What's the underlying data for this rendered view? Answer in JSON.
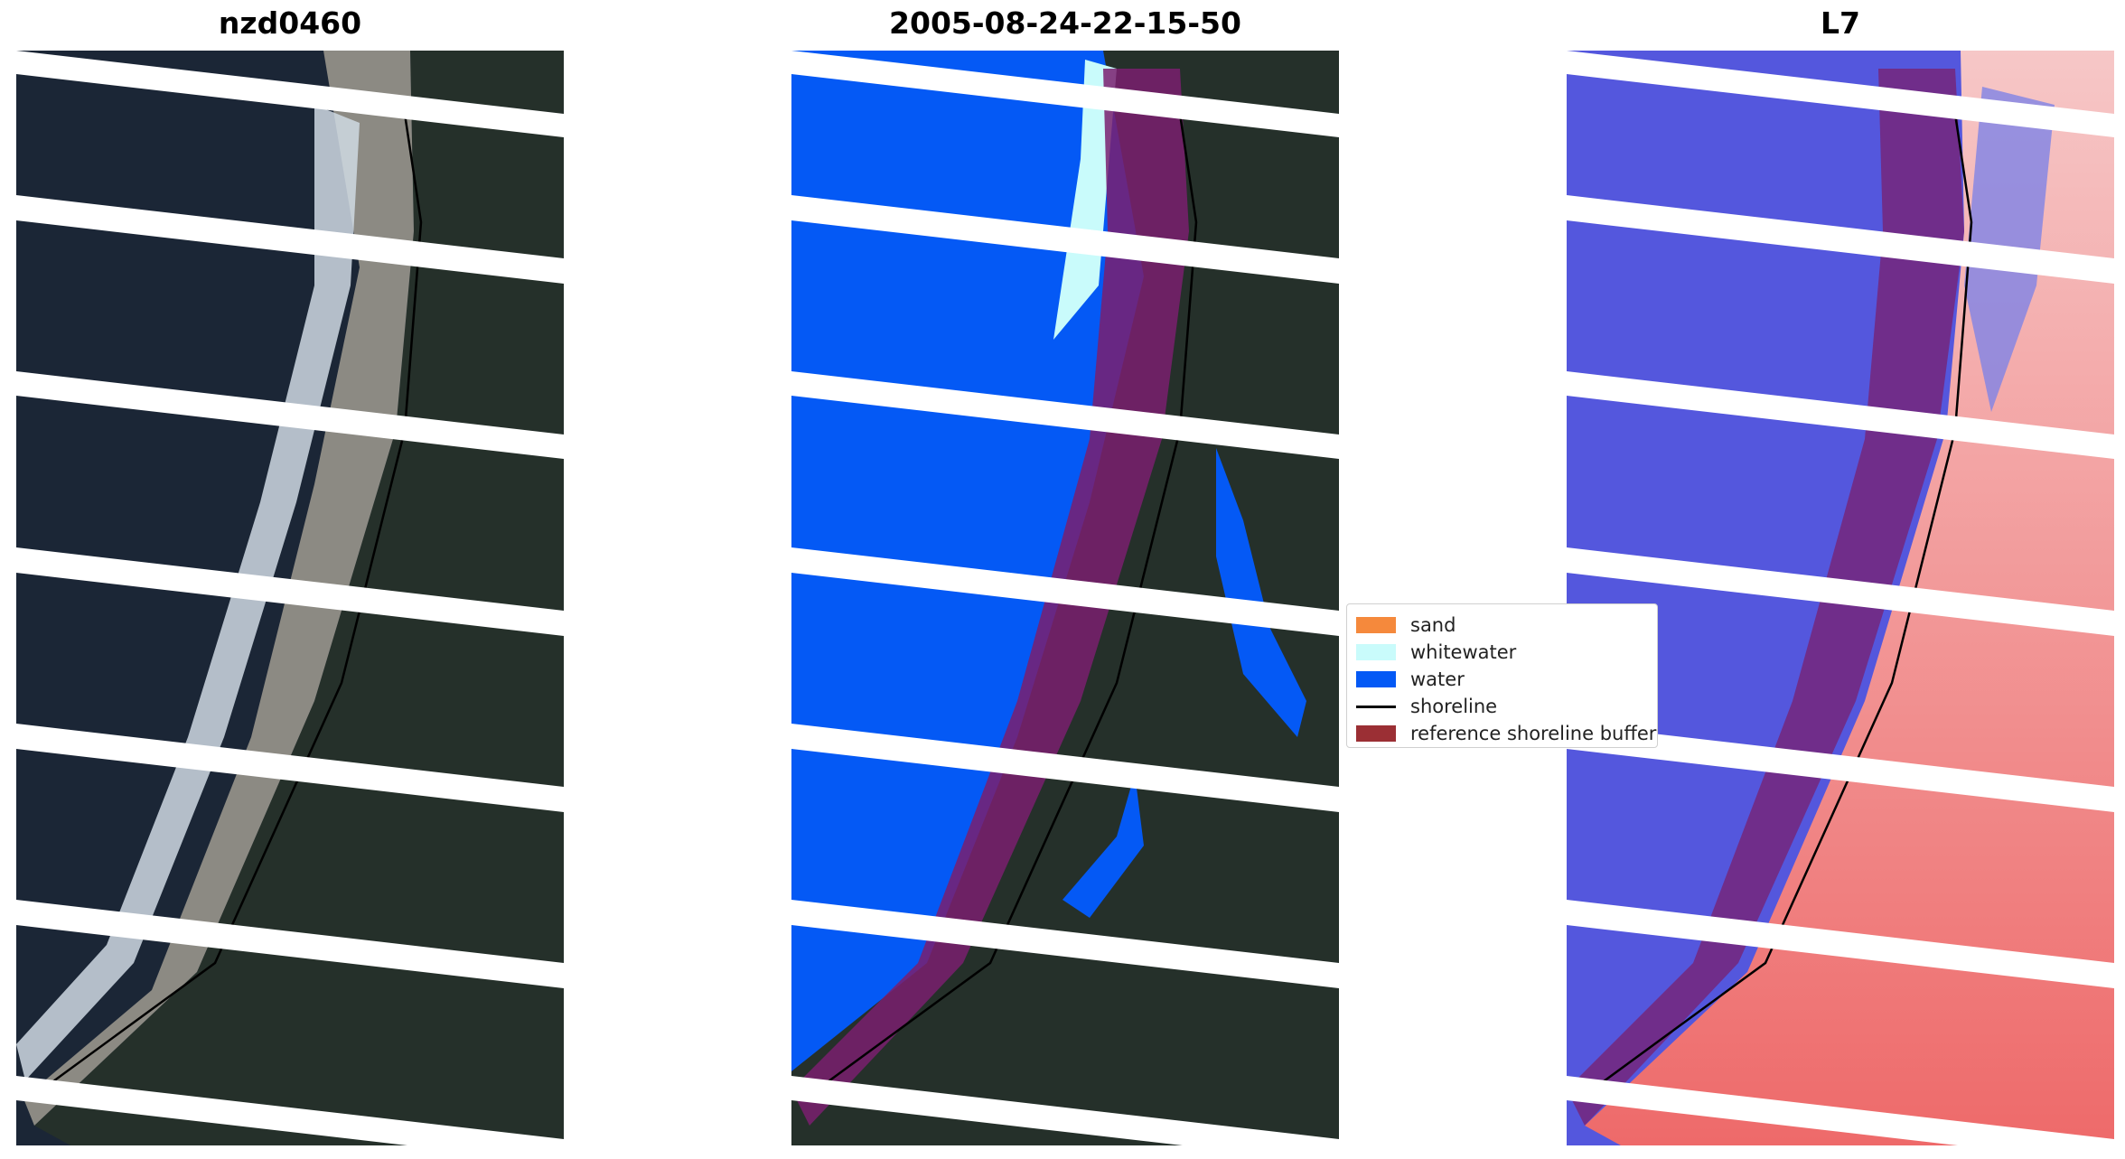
{
  "titles": {
    "left": "nzd0460",
    "middle": "2005-08-24-22-15-50",
    "right": "L7"
  },
  "legend": {
    "items": [
      {
        "label": "sand",
        "color": "#f5893c",
        "kind": "patch"
      },
      {
        "label": "whitewater",
        "color": "#c9fbfb",
        "kind": "patch"
      },
      {
        "label": "water",
        "color": "#0459f5",
        "kind": "patch"
      },
      {
        "label": "shoreline",
        "color": "#000000",
        "kind": "line"
      },
      {
        "label": "reference shoreline buffer",
        "color": "#9b2f34",
        "kind": "patch"
      }
    ]
  },
  "colors": {
    "ocean": "#1b2636",
    "forest": "#25302a",
    "beach": "#8c8a83",
    "surf": "#dfe8ef",
    "water_class": "#0459f5",
    "whitewater_class": "#c9fbfb",
    "buffer": "#7a1f6e",
    "ndwi_water": "#4c4fd9",
    "ndwi_land": "#f0a9a9",
    "scanline_gap": "#ffffff"
  },
  "panels": [
    "rgb-image",
    "classified-image",
    "index-image"
  ]
}
